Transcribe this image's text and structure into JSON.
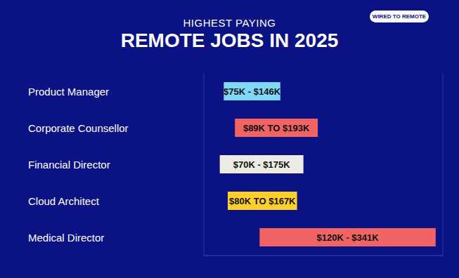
{
  "chart_data": {
    "type": "bar",
    "orientation": "horizontal",
    "subtitle": "HIGHEST PAYING",
    "title": "REMOTE JOBS IN 2025",
    "annotations": [
      "WIRED TO REMOTE"
    ],
    "categories": [
      "Product Manager",
      "Corporate Counsellor",
      "Financial Director",
      "Cloud Architect",
      "Medical Director"
    ],
    "values": [
      [
        75,
        146
      ],
      [
        89,
        193
      ],
      [
        70,
        175
      ],
      [
        80,
        167
      ],
      [
        120,
        341
      ]
    ],
    "value_labels": [
      "$75K - $146K",
      "$89K TO $193K",
      "$70K - $175K",
      "$80K TO $167K",
      "$120K - $341K"
    ],
    "data_labels": true,
    "colors": [
      "#7fd8f7",
      "#f26464",
      "#ecebe4",
      "#ffd02a",
      "#f26464"
    ],
    "xlim": [
      50,
      350
    ],
    "xticks": [
      50,
      100,
      150,
      200,
      250,
      300,
      350
    ],
    "grid": true,
    "tick_labels": false
  }
}
